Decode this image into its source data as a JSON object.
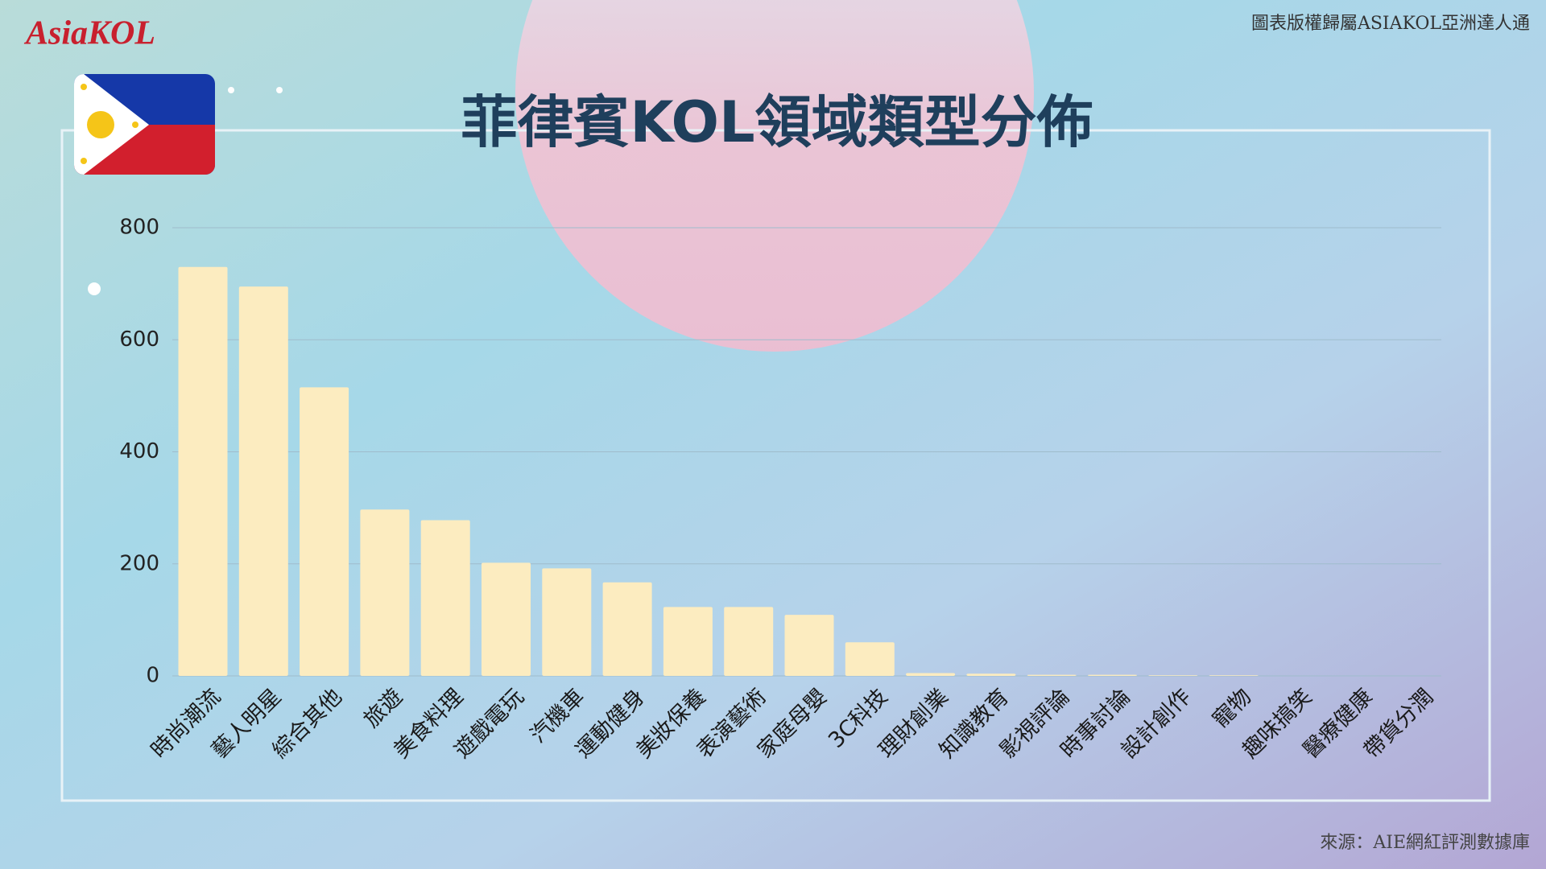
{
  "chart_data": {
    "type": "bar",
    "title": "菲律賓KOL領域類型分佈",
    "logo": "AsiaKOL",
    "copyright": "圖表版權歸屬ASIAKOL亞洲達人通",
    "source": "來源：AIE網紅評測數據庫",
    "categories": [
      "時尚潮流",
      "藝人明星",
      "綜合其他",
      "旅遊",
      "美食料理",
      "遊戲電玩",
      "汽機車",
      "運動健身",
      "美妝保養",
      "表演藝術",
      "家庭母嬰",
      "3C科技",
      "理財創業",
      "知識教育",
      "影視評論",
      "時事討論",
      "設計創作",
      "寵物",
      "趣味搞笑",
      "醫療健康",
      "帶貨分潤"
    ],
    "values": [
      730,
      695,
      515,
      297,
      278,
      202,
      192,
      167,
      123,
      123,
      109,
      60,
      5,
      4,
      2,
      2,
      1,
      1,
      0,
      0,
      0
    ],
    "color": "#fcecc0",
    "ylim": [
      0,
      800
    ],
    "yticks": [
      0,
      200,
      400,
      600,
      800
    ],
    "grid": true
  }
}
